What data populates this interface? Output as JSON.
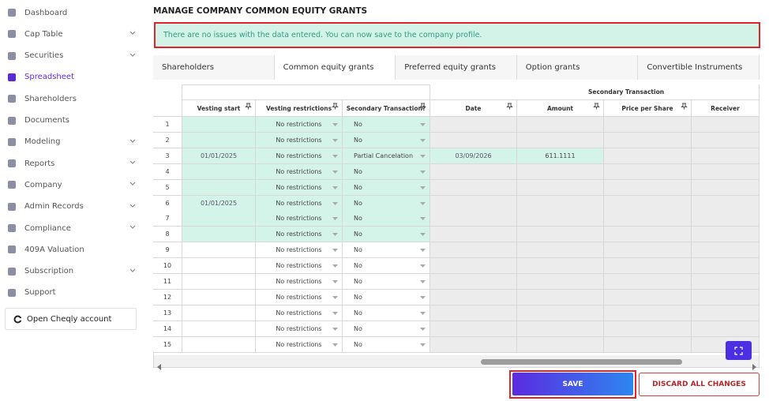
{
  "sidebar": {
    "items": [
      {
        "label": "Dashboard"
      },
      {
        "label": "Cap Table",
        "expandable": true
      },
      {
        "label": "Securities",
        "expandable": true
      },
      {
        "label": "Spreadsheet",
        "active": true
      },
      {
        "label": "Shareholders"
      },
      {
        "label": "Documents"
      },
      {
        "label": "Modeling",
        "expandable": true
      },
      {
        "label": "Reports",
        "expandable": true
      },
      {
        "label": "Company",
        "expandable": true
      },
      {
        "label": "Admin Records",
        "expandable": true
      },
      {
        "label": "Compliance",
        "expandable": true
      },
      {
        "label": "409A Valuation"
      },
      {
        "label": "Subscription",
        "expandable": true
      },
      {
        "label": "Support"
      }
    ],
    "open_account": "Open Cheqly account"
  },
  "header": {
    "title": "MANAGE COMPANY COMMON EQUITY GRANTS"
  },
  "alert": "There are no issues with the data entered. You can now save to the company profile.",
  "tabs": [
    {
      "label": "Shareholders"
    },
    {
      "label": "Common equity grants",
      "active": true
    },
    {
      "label": "Preferred equity grants"
    },
    {
      "label": "Option grants"
    },
    {
      "label": "Convertible Instruments"
    }
  ],
  "table": {
    "group_header": "Secondary Transaction",
    "columns": [
      "Vesting start",
      "Vesting restrictions",
      "Secondary Transaction?",
      "Date",
      "Amount",
      "Price per Share",
      "Receiver"
    ],
    "rows": [
      {
        "row": 1,
        "vesting_restrictions": "No restrictions",
        "secondary_transaction": "No",
        "highlighted": true
      },
      {
        "row": 2,
        "vesting_restrictions": "No restrictions",
        "secondary_transaction": "No",
        "highlighted": true
      },
      {
        "row": 3,
        "vesting_start": "01/01/2025",
        "vesting_restrictions": "No restrictions",
        "secondary_transaction": "Partial Cancelation",
        "date": "03/09/2026",
        "amount": "611.1111",
        "highlighted": true
      },
      {
        "row": 4,
        "vesting_restrictions": "No restrictions",
        "secondary_transaction": "No",
        "highlighted": true
      },
      {
        "row": 5,
        "vesting_restrictions": "No restrictions",
        "secondary_transaction": "No",
        "highlighted": true
      },
      {
        "row": 6,
        "vesting_start": "01/01/2025",
        "vesting_restrictions": "No restrictions",
        "secondary_transaction": "No",
        "highlighted": true
      },
      {
        "row": 7,
        "vesting_restrictions": "No restrictions",
        "secondary_transaction": "No",
        "highlighted": true
      },
      {
        "row": 8,
        "vesting_restrictions": "No restrictions",
        "secondary_transaction": "No",
        "highlighted": true
      },
      {
        "row": 9,
        "vesting_restrictions": "No restrictions",
        "secondary_transaction": "No"
      },
      {
        "row": 10,
        "vesting_restrictions": "No restrictions",
        "secondary_transaction": "No"
      },
      {
        "row": 11,
        "vesting_restrictions": "No restrictions",
        "secondary_transaction": "No"
      },
      {
        "row": 12,
        "vesting_restrictions": "No restrictions",
        "secondary_transaction": "No"
      },
      {
        "row": 13,
        "vesting_restrictions": "No restrictions",
        "secondary_transaction": "No"
      },
      {
        "row": 14,
        "vesting_restrictions": "No restrictions",
        "secondary_transaction": "No"
      },
      {
        "row": 15,
        "vesting_restrictions": "No restrictions",
        "secondary_transaction": "No"
      }
    ]
  },
  "buttons": {
    "save": "SAVE",
    "discard": "DISCARD ALL CHANGES"
  }
}
